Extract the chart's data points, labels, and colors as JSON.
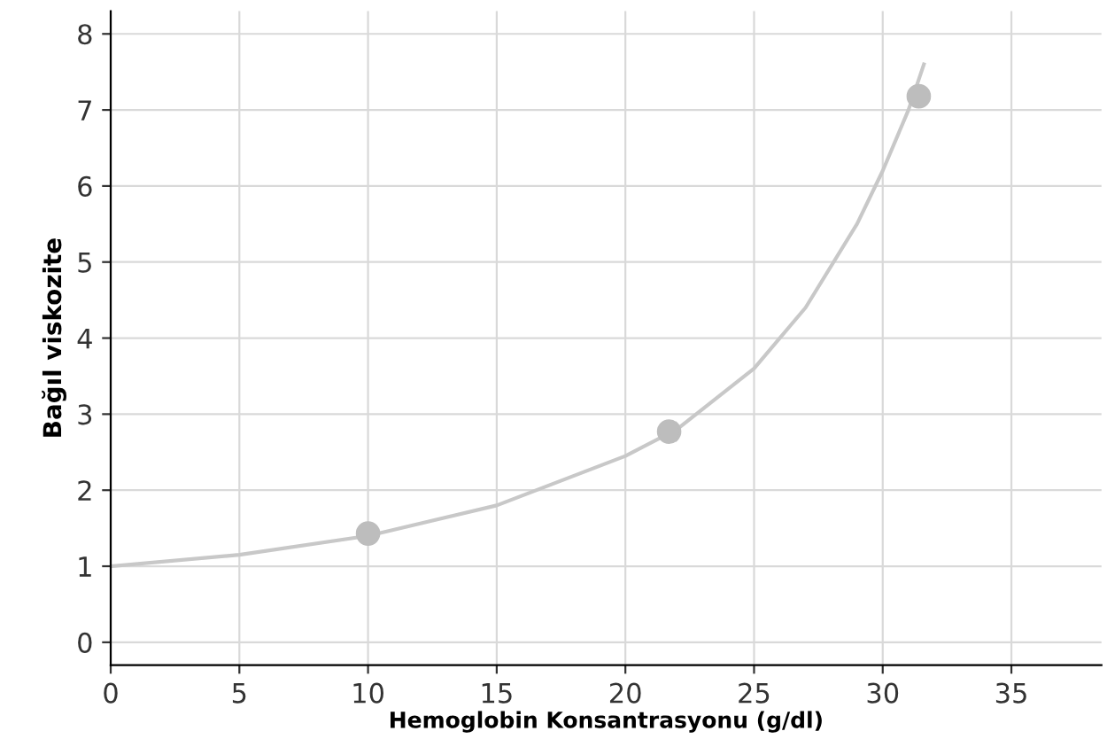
{
  "chart_data": {
    "type": "line",
    "xlabel": "Hemoglobin Konsantrasyonu (g/dl)",
    "ylabel": "Bağıl viskozite",
    "series": [
      {
        "color": "#c8c8c8",
        "x": [
          0,
          5,
          10,
          15,
          20,
          22,
          25,
          27,
          29,
          30,
          31,
          31.6
        ],
        "values": [
          1,
          1.15,
          1.4,
          1.8,
          2.45,
          2.8,
          3.6,
          4.4,
          5.5,
          6.2,
          7.0,
          7.6
        ]
      },
      {
        "type": "scatter",
        "color": "#bdbdbd",
        "marker": "circle",
        "x": [
          10,
          21.7,
          31.4
        ],
        "values": [
          1.43,
          2.77,
          7.18
        ]
      }
    ],
    "xlim": [
      0,
      38.5
    ],
    "ylim": [
      -0.3,
      8.3
    ],
    "xticks": [
      0,
      5,
      10,
      15,
      20,
      25,
      30,
      35
    ],
    "yticks": [
      0,
      1,
      2,
      3,
      4,
      5,
      6,
      7,
      8
    ],
    "grid": true
  }
}
